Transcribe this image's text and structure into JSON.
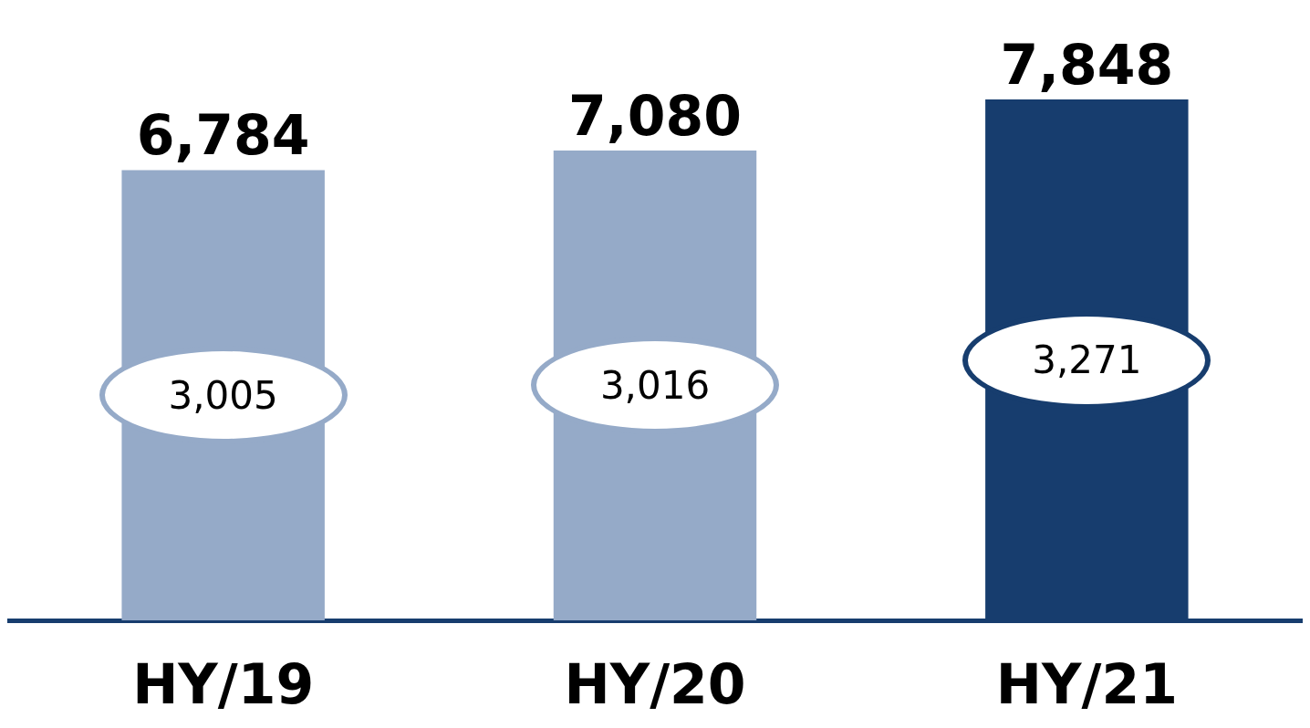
{
  "chart_data": {
    "type": "bar",
    "categories": [
      "HY/19",
      "HY/20",
      "HY/21"
    ],
    "grid": false,
    "series": [
      {
        "type": "bar",
        "colors": [
          "#95aac8",
          "#95aac8",
          "#173d6e"
        ],
        "values": [
          6784,
          7080,
          7848
        ],
        "value_labels": [
          "6,784",
          "7,080",
          "7,848"
        ]
      }
    ],
    "annotations": [
      "3,005",
      "3,016",
      "3,271"
    ]
  }
}
